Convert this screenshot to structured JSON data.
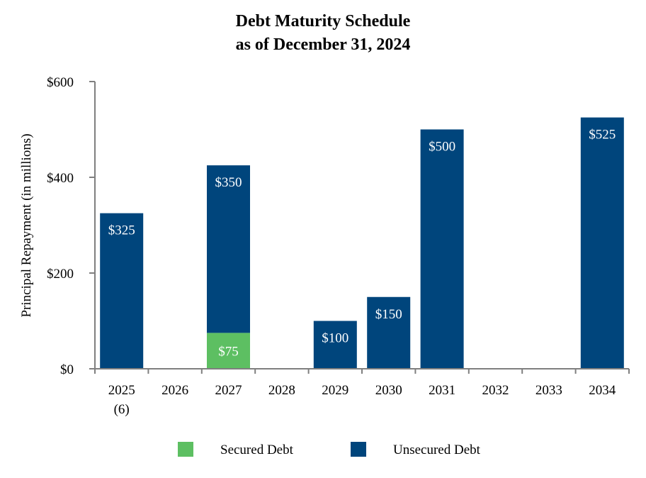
{
  "chart_data": {
    "type": "bar",
    "stacked": true,
    "title": "Debt Maturity Schedule",
    "subtitle": "as of December 31, 2024",
    "xlabel": "",
    "ylabel": "Principal Repayment (in millions)",
    "ylim": [
      0,
      600
    ],
    "yticks": [
      "$0",
      "$200",
      "$400",
      "$600"
    ],
    "ytick_values": [
      0,
      200,
      400,
      600
    ],
    "categories": [
      "2025",
      "2026",
      "2027",
      "2028",
      "2029",
      "2030",
      "2031",
      "2032",
      "2033",
      "2034"
    ],
    "category_sublabels": [
      "(6)",
      "",
      "",
      "",
      "",
      "",
      "",
      "",
      "",
      ""
    ],
    "series": [
      {
        "name": "Secured Debt",
        "color": "#5dbf62",
        "values": [
          0,
          0,
          75,
          0,
          0,
          0,
          0,
          0,
          0,
          0
        ],
        "labels": [
          "",
          "",
          "$75",
          "",
          "",
          "",
          "",
          "",
          "",
          ""
        ]
      },
      {
        "name": "Unsecured Debt",
        "color": "#00457c",
        "values": [
          325,
          0,
          350,
          0,
          100,
          150,
          500,
          0,
          0,
          525
        ],
        "labels": [
          "$325",
          "",
          "$350",
          "",
          "$100",
          "$150",
          "$500",
          "",
          "",
          "$525"
        ]
      }
    ],
    "grid": false,
    "legend_position": "bottom"
  }
}
